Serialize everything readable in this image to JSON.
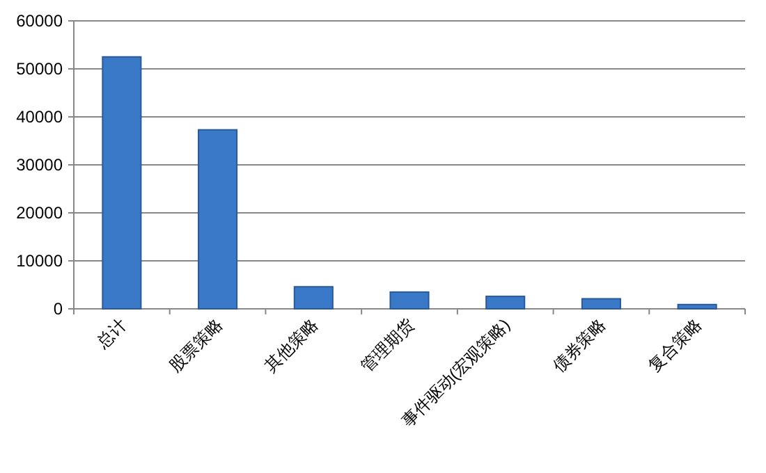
{
  "chart_data": {
    "type": "bar",
    "categories": [
      "总计",
      "股票策略",
      "其他策略",
      "管理期货",
      "事件驱动(宏观策略)",
      "债券策略",
      "复合策略"
    ],
    "values": [
      52500,
      37300,
      4600,
      3500,
      2600,
      2100,
      900
    ],
    "color": "#3a78c8",
    "ylim": [
      0,
      60000
    ],
    "yticks": [
      0,
      10000,
      20000,
      30000,
      40000,
      50000,
      60000
    ],
    "grid": "y"
  }
}
